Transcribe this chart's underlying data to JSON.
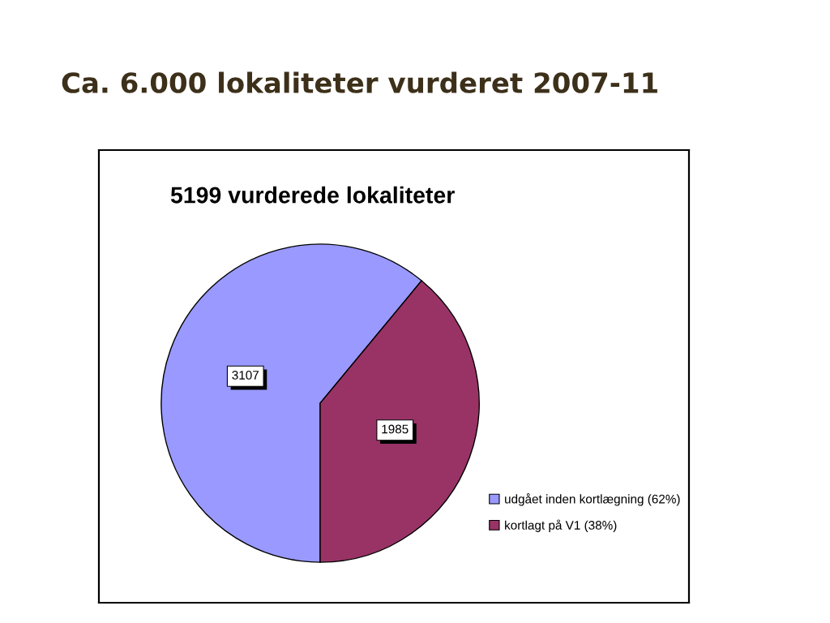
{
  "chart_data": {
    "type": "pie",
    "title": "Ca. 6.000 lokaliteter vurderet 2007-11",
    "subtitle": "5199 vurderede lokaliteter",
    "categories": [
      "udgået inden kortlægning (62%)",
      "kortlagt på V1 (38%)"
    ],
    "values": [
      3107,
      1985
    ],
    "colors": [
      "#9999ff",
      "#993366"
    ],
    "data_labels": true,
    "legend": "right"
  }
}
